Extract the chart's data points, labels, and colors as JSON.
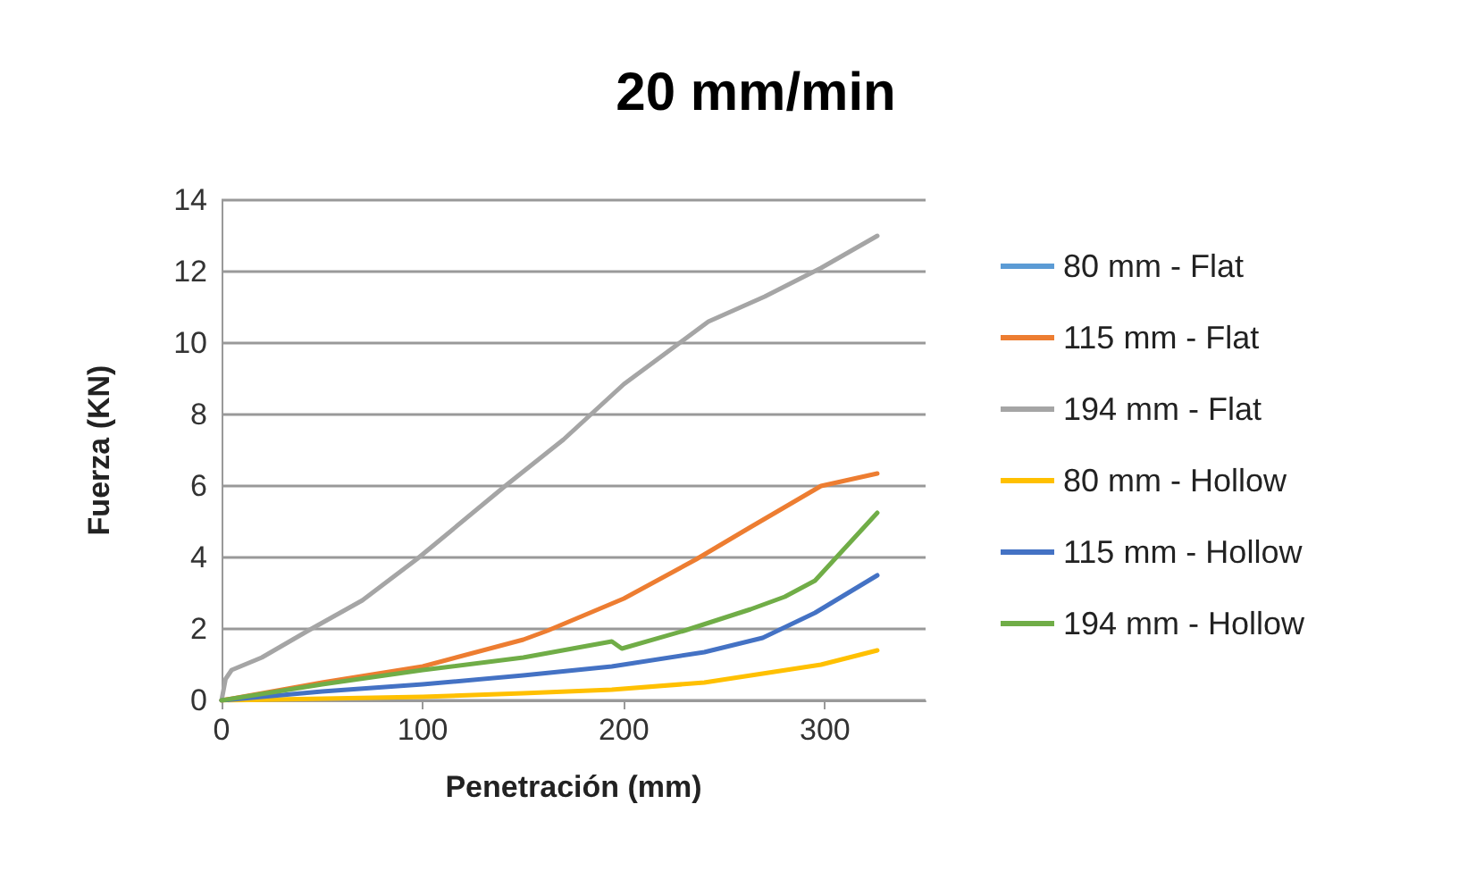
{
  "chart_data": {
    "type": "line",
    "title": "20 mm/min",
    "xlabel": "Penetración (mm)",
    "ylabel": "Fuerza (KN)",
    "xlim": [
      0,
      350
    ],
    "xticks": [
      0,
      100,
      200,
      300
    ],
    "ylim": [
      0,
      14
    ],
    "yticks": [
      0,
      2,
      4,
      6,
      8,
      10,
      12,
      14
    ],
    "grid": "y",
    "legend": "right",
    "marker": "none",
    "line_style": "solid",
    "series": [
      {
        "name": "80 mm - Flat",
        "color": "#5b9bd5"
      },
      {
        "name": "115 mm - Flat",
        "color": "#ed7d31",
        "x": [
          0,
          50,
          100,
          150,
          162,
          200,
          236,
          263,
          298,
          326
        ],
        "values": [
          0,
          0.5,
          0.95,
          1.7,
          1.95,
          2.85,
          3.95,
          4.85,
          6.0,
          6.35
        ]
      },
      {
        "name": "194 mm - Flat",
        "color": "#a5a5a5",
        "x": [
          0,
          2,
          5,
          20,
          43,
          70,
          97,
          141,
          170,
          200,
          242,
          270,
          298,
          326
        ],
        "values": [
          0,
          0.6,
          0.85,
          1.2,
          1.95,
          2.8,
          3.95,
          6.0,
          7.3,
          8.85,
          10.6,
          11.3,
          12.1,
          13.0
        ]
      },
      {
        "name": "80 mm - Hollow",
        "color": "#ffc000",
        "x": [
          0,
          20,
          100,
          150,
          194,
          240,
          269,
          298,
          326
        ],
        "values": [
          0,
          0.02,
          0.1,
          0.2,
          0.3,
          0.5,
          0.75,
          1.0,
          1.4
        ]
      },
      {
        "name": "115 mm - Hollow",
        "color": "#4472c4",
        "x": [
          0,
          50,
          100,
          150,
          194,
          240,
          269,
          295,
          326
        ],
        "values": [
          0,
          0.25,
          0.45,
          0.7,
          0.95,
          1.35,
          1.75,
          2.45,
          3.5
        ]
      },
      {
        "name": "194 mm - Hollow",
        "color": "#70ad47",
        "x": [
          0,
          50,
          100,
          150,
          194,
          199,
          230,
          263,
          280,
          295,
          326
        ],
        "values": [
          0,
          0.45,
          0.85,
          1.2,
          1.65,
          1.45,
          1.95,
          2.55,
          2.9,
          3.35,
          5.25
        ]
      }
    ]
  }
}
